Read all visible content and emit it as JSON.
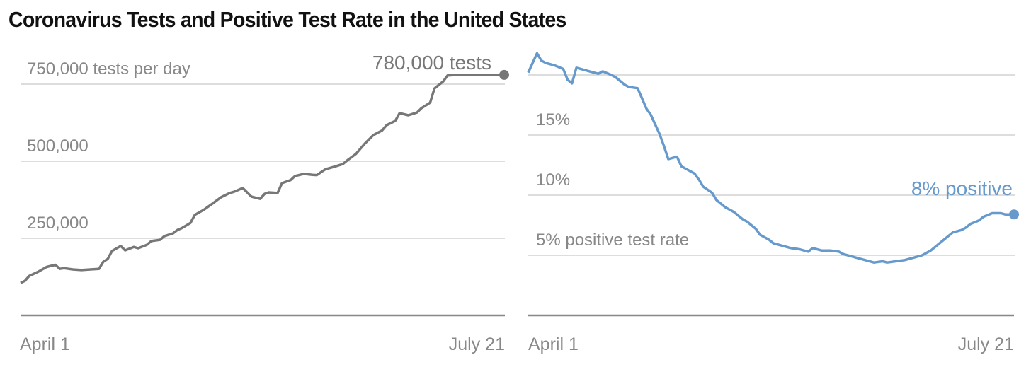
{
  "title": "Coronavirus Tests and Positive Test Rate in the United States",
  "colors": {
    "tests_line": "#777777",
    "rate_line": "#6699cc",
    "grid": "#dddddd",
    "axis": "#888888",
    "tick_text": "#888888"
  },
  "chart_data": [
    {
      "type": "line",
      "title": "",
      "xlabel": "",
      "ylabel": "tests per day",
      "x_tick_labels": [
        "April 1",
        "July 21"
      ],
      "x_range": [
        0,
        111
      ],
      "y_ticks": [
        250000,
        500000,
        750000
      ],
      "y_tick_labels": [
        "250,000",
        "500,000",
        "750,000 tests per day"
      ],
      "ylim": [
        0,
        780000
      ],
      "grid": true,
      "annotation": {
        "text": "780,000 tests",
        "x": 111,
        "y": 780000
      },
      "series": [
        {
          "name": "Tests per day",
          "x": [
            0,
            1,
            2,
            4,
            6,
            8,
            9,
            10,
            12,
            14,
            16,
            18,
            19,
            20,
            21,
            23,
            24,
            26,
            27,
            29,
            30,
            32,
            33,
            35,
            36,
            37,
            39,
            40,
            42,
            44,
            46,
            48,
            49,
            51,
            53,
            55,
            56,
            57,
            59,
            60,
            62,
            63,
            65,
            67,
            68,
            69,
            70,
            72,
            74,
            75,
            77,
            79,
            81,
            83,
            84,
            86,
            87,
            89,
            91,
            92,
            94,
            95,
            97,
            98,
            100,
            102,
            103,
            105,
            106,
            108,
            109,
            110,
            111
          ],
          "values": [
            105000,
            112000,
            128000,
            141000,
            157000,
            164000,
            151000,
            153000,
            149000,
            147000,
            149000,
            151000,
            174000,
            183000,
            209000,
            225000,
            211000,
            222000,
            218000,
            229000,
            241000,
            245000,
            257000,
            266000,
            277000,
            283000,
            300000,
            326000,
            342000,
            362000,
            383000,
            397000,
            401000,
            413000,
            385000,
            378000,
            394000,
            399000,
            397000,
            429000,
            439000,
            452000,
            459000,
            456000,
            455000,
            465000,
            474000,
            482000,
            491000,
            503000,
            524000,
            557000,
            585000,
            600000,
            617000,
            631000,
            656000,
            649000,
            658000,
            672000,
            690000,
            736000,
            759000,
            778000,
            780000,
            780000,
            780000,
            780000,
            780000,
            780000,
            780000,
            780000,
            780000
          ]
        }
      ]
    },
    {
      "type": "line",
      "title": "",
      "xlabel": "",
      "ylabel": "positive test rate",
      "x_tick_labels": [
        "April 1",
        "July 21"
      ],
      "x_range": [
        0,
        111
      ],
      "y_ticks": [
        5,
        10,
        15,
        20
      ],
      "y_tick_labels": [
        "5% positive test rate",
        "10%",
        "15%",
        ""
      ],
      "ylim": [
        0,
        22
      ],
      "grid": true,
      "annotation": {
        "text": "8% positive",
        "x": 111,
        "y": 8.5
      },
      "series": [
        {
          "name": "Positive test rate (%)",
          "x": [
            0,
            2,
            3,
            4,
            6,
            8,
            9,
            10,
            11,
            13,
            14,
            16,
            17,
            19,
            20,
            22,
            23,
            25,
            27,
            28,
            30,
            31,
            32,
            34,
            35,
            36,
            38,
            39,
            40,
            42,
            43,
            45,
            47,
            49,
            50,
            52,
            53,
            55,
            56,
            58,
            60,
            62,
            64,
            65,
            67,
            69,
            71,
            72,
            74,
            75,
            77,
            79,
            81,
            82,
            84,
            86,
            88,
            90,
            92,
            94,
            95,
            97,
            99,
            100,
            101,
            103,
            104,
            106,
            108,
            109,
            111
          ],
          "values": [
            20.2,
            21.8,
            21.2,
            21.0,
            20.8,
            20.5,
            19.6,
            19.3,
            20.6,
            20.4,
            20.3,
            20.1,
            20.3,
            20.0,
            19.8,
            19.2,
            19.0,
            18.9,
            17.2,
            16.7,
            15.1,
            14.1,
            13.0,
            13.2,
            12.4,
            12.2,
            11.8,
            11.3,
            10.7,
            10.2,
            9.6,
            9.0,
            8.6,
            8.0,
            7.8,
            7.2,
            6.7,
            6.3,
            6.0,
            5.8,
            5.6,
            5.5,
            5.3,
            5.6,
            5.4,
            5.4,
            5.3,
            5.1,
            4.9,
            4.8,
            4.6,
            4.4,
            4.5,
            4.4,
            4.5,
            4.6,
            4.8,
            5.0,
            5.4,
            6.0,
            6.3,
            6.9,
            7.1,
            7.3,
            7.6,
            7.9,
            8.2,
            8.5,
            8.5,
            8.4,
            8.4
          ]
        }
      ]
    }
  ]
}
